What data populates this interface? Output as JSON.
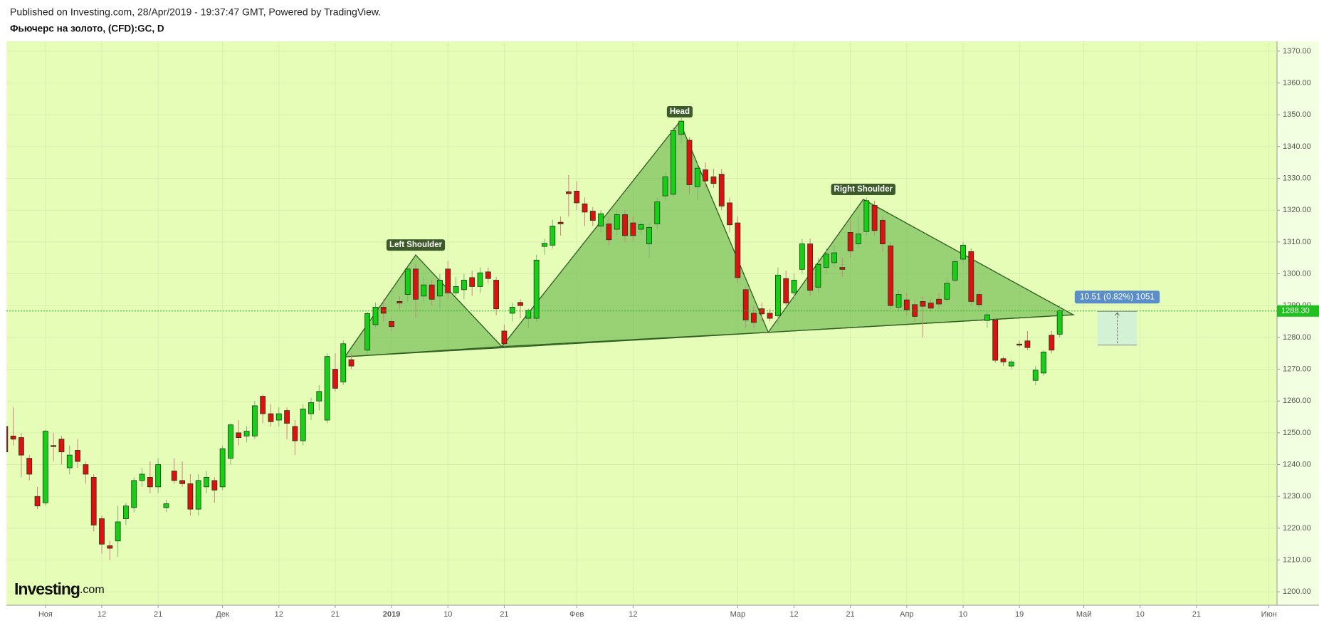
{
  "header": {
    "published": "Published on Investing.com, 28/Apr/2019 - 19:37:47 GMT, Powered by TradingView.",
    "title": "Фьючерс на золото, (CFD):GC, D"
  },
  "logo": {
    "name": "Investing",
    "suffix": ".com"
  },
  "chart_data": {
    "type": "candlestick",
    "up_color": "#16d016",
    "down_color": "#e01010",
    "grid": true,
    "xlim": [
      -4.85,
      153
    ],
    "ylim": [
      1195.8,
      1373.1
    ],
    "xticks": [
      {
        "value": 0,
        "label": "Ноя"
      },
      {
        "value": 7,
        "label": "12"
      },
      {
        "value": 14,
        "label": "21"
      },
      {
        "value": 22,
        "label": "Дек"
      },
      {
        "value": 29,
        "label": "12"
      },
      {
        "value": 36,
        "label": "21"
      },
      {
        "value": 43,
        "label": "2019"
      },
      {
        "value": 50,
        "label": "10"
      },
      {
        "value": 57,
        "label": "21"
      },
      {
        "value": 66,
        "label": "Фев"
      },
      {
        "value": 73,
        "label": "12"
      },
      {
        "value": 86,
        "label": "Мар"
      },
      {
        "value": 93,
        "label": "12"
      },
      {
        "value": 100,
        "label": "21"
      },
      {
        "value": 107,
        "label": "Апр"
      },
      {
        "value": 114,
        "label": "10"
      },
      {
        "value": 121,
        "label": "19"
      },
      {
        "value": 129,
        "label": "Май"
      },
      {
        "value": 136,
        "label": "10"
      },
      {
        "value": 143,
        "label": "21"
      },
      {
        "value": 152,
        "label": "Июн"
      }
    ],
    "yticks": [
      {
        "value": 1200,
        "label": "1200.00"
      },
      {
        "value": 1210,
        "label": "1210.00"
      },
      {
        "value": 1220,
        "label": "1220.00"
      },
      {
        "value": 1230,
        "label": "1230.00"
      },
      {
        "value": 1240,
        "label": "1240.00"
      },
      {
        "value": 1250,
        "label": "1250.00"
      },
      {
        "value": 1260,
        "label": "1260.00"
      },
      {
        "value": 1270,
        "label": "1270.00"
      },
      {
        "value": 1280,
        "label": "1280.00"
      },
      {
        "value": 1290,
        "label": "1290.00"
      },
      {
        "value": 1300,
        "label": "1300.00"
      },
      {
        "value": 1310,
        "label": "1310.00"
      },
      {
        "value": 1320,
        "label": "1320.00"
      },
      {
        "value": 1330,
        "label": "1330.00"
      },
      {
        "value": 1340,
        "label": "1340.00"
      },
      {
        "value": 1350,
        "label": "1350.00"
      },
      {
        "value": 1360,
        "label": "1360.00"
      },
      {
        "value": 1370,
        "label": "1370.00"
      }
    ],
    "last_price": {
      "value": 1288.3,
      "label": "1288.30"
    },
    "candles": [
      [
        -5,
        1252,
        1257,
        1242,
        1244
      ],
      [
        -4,
        1249,
        1258,
        1246,
        1248
      ],
      [
        -3,
        1248.5,
        1250,
        1236,
        1243
      ],
      [
        -2,
        1242,
        1243,
        1235,
        1237
      ],
      [
        -1,
        1230,
        1233,
        1226,
        1227
      ],
      [
        0,
        1228,
        1251,
        1227,
        1250.5
      ],
      [
        1,
        1246,
        1250,
        1241,
        1245.8
      ],
      [
        2,
        1248,
        1249,
        1240,
        1244
      ],
      [
        3,
        1239,
        1246,
        1237,
        1243
      ],
      [
        4,
        1244.5,
        1248,
        1239,
        1241
      ],
      [
        5,
        1240,
        1241,
        1234,
        1237
      ],
      [
        6,
        1236,
        1237,
        1219,
        1221
      ],
      [
        7,
        1223,
        1224,
        1212,
        1215
      ],
      [
        8,
        1214.5,
        1216,
        1210,
        1213.7
      ],
      [
        9,
        1216,
        1227,
        1211,
        1222
      ],
      [
        10,
        1223,
        1228,
        1221,
        1227
      ],
      [
        11,
        1226.5,
        1236,
        1225,
        1235
      ],
      [
        12,
        1235,
        1239,
        1233,
        1237
      ],
      [
        13,
        1236,
        1241,
        1231,
        1233
      ],
      [
        14,
        1233,
        1242,
        1231,
        1240
      ],
      [
        15,
        1226.5,
        1229,
        1225,
        1227.7
      ],
      [
        16,
        1238,
        1242,
        1234,
        1235
      ],
      [
        17,
        1235,
        1241,
        1233,
        1234
      ],
      [
        18,
        1234,
        1237,
        1224,
        1226
      ],
      [
        19,
        1226,
        1237,
        1224,
        1235
      ],
      [
        20,
        1233,
        1238,
        1231,
        1236
      ],
      [
        21,
        1235,
        1236,
        1228,
        1232
      ],
      [
        22,
        1233,
        1246,
        1232,
        1245
      ],
      [
        23,
        1242,
        1253,
        1240,
        1252.5
      ],
      [
        24,
        1250,
        1254,
        1246,
        1248.5
      ],
      [
        25,
        1249,
        1252,
        1247,
        1250.5
      ],
      [
        26,
        1249,
        1260,
        1248,
        1258.5
      ],
      [
        27,
        1261.5,
        1262,
        1253,
        1256
      ],
      [
        28,
        1256,
        1259,
        1252,
        1253.5
      ],
      [
        29,
        1254,
        1258,
        1252,
        1256
      ],
      [
        30,
        1257,
        1258,
        1248,
        1253
      ],
      [
        31,
        1252,
        1254,
        1243,
        1247.5
      ],
      [
        32,
        1247.5,
        1259,
        1246,
        1257.5
      ],
      [
        33,
        1256,
        1261,
        1254,
        1259.5
      ],
      [
        34,
        1260,
        1265,
        1257,
        1263
      ],
      [
        35,
        1254,
        1275,
        1253,
        1274
      ],
      [
        36,
        1270,
        1275,
        1263,
        1264
      ],
      [
        37,
        1266,
        1279,
        1265,
        1278
      ],
      [
        38,
        1273,
        1275,
        1270,
        1271
      ],
      [
        40,
        1276,
        1288,
        1275,
        1287.5
      ],
      [
        41,
        1284,
        1291,
        1283,
        1289.5
      ],
      [
        42,
        1289.5,
        1292,
        1285,
        1287.6
      ],
      [
        43,
        1285,
        1286,
        1282,
        1283.4
      ],
      [
        44,
        1291.3,
        1293,
        1289,
        1290.8
      ],
      [
        45,
        1293.5,
        1302,
        1291,
        1301.5
      ],
      [
        46,
        1301.5,
        1303,
        1286,
        1292
      ],
      [
        47,
        1293,
        1299,
        1291,
        1296.5
      ],
      [
        48,
        1296.5,
        1298,
        1290,
        1292
      ],
      [
        49,
        1293,
        1300,
        1289,
        1298
      ],
      [
        50,
        1301.5,
        1304,
        1292,
        1294
      ],
      [
        51,
        1294,
        1299,
        1293,
        1296
      ],
      [
        52,
        1295,
        1300,
        1292,
        1298
      ],
      [
        53,
        1298.8,
        1301,
        1293,
        1296
      ],
      [
        54,
        1296,
        1302,
        1294,
        1300.3
      ],
      [
        55,
        1300.6,
        1302,
        1297,
        1298.5
      ],
      [
        56,
        1298,
        1299,
        1287,
        1289
      ],
      [
        57,
        1282,
        1284,
        1277,
        1278
      ],
      [
        58,
        1287.6,
        1291,
        1285,
        1289.5
      ],
      [
        59,
        1291,
        1292,
        1286,
        1290
      ],
      [
        60,
        1286,
        1289,
        1283,
        1288.5
      ],
      [
        61,
        1286,
        1306,
        1285,
        1304.3
      ],
      [
        62,
        1308.6,
        1311,
        1306,
        1309.6
      ],
      [
        63,
        1309,
        1317,
        1308,
        1315
      ],
      [
        64,
        1316.2,
        1318,
        1312,
        1315.7
      ],
      [
        65,
        1325.8,
        1331,
        1318,
        1325.2
      ],
      [
        66,
        1326,
        1329,
        1320,
        1322.3
      ],
      [
        67,
        1322,
        1324,
        1315,
        1319.4
      ],
      [
        68,
        1319.7,
        1321,
        1315,
        1316.8
      ],
      [
        69,
        1315,
        1320,
        1313,
        1318.9
      ],
      [
        70,
        1315.7,
        1318,
        1309,
        1310.7
      ],
      [
        71,
        1314,
        1320,
        1312,
        1318.6
      ],
      [
        72,
        1318.6,
        1320,
        1310,
        1312
      ],
      [
        73,
        1316,
        1318,
        1310,
        1312
      ],
      [
        74,
        1314,
        1317,
        1312,
        1315.5
      ],
      [
        75,
        1309.4,
        1316,
        1305,
        1314.6
      ],
      [
        76,
        1315.7,
        1324,
        1314,
        1322.6
      ],
      [
        77,
        1324.5,
        1332,
        1323,
        1330.5
      ],
      [
        78,
        1325,
        1346,
        1324,
        1345
      ],
      [
        79,
        1343.8,
        1349,
        1341,
        1348
      ],
      [
        80,
        1342,
        1343,
        1325,
        1328
      ],
      [
        81,
        1327.4,
        1335,
        1323,
        1333.2
      ],
      [
        82,
        1332.7,
        1335,
        1327,
        1329.2
      ],
      [
        83,
        1330.5,
        1333,
        1327,
        1328.4
      ],
      [
        84,
        1331.3,
        1333,
        1320,
        1321.3
      ],
      [
        85,
        1322.3,
        1324,
        1313,
        1315.4
      ],
      [
        86,
        1316,
        1318,
        1297,
        1298.8
      ],
      [
        87,
        1295,
        1296,
        1283,
        1285.5
      ],
      [
        88,
        1287.6,
        1290,
        1283,
        1284.7
      ],
      [
        89,
        1289,
        1291,
        1285,
        1287.4
      ],
      [
        90,
        1287.6,
        1289,
        1285,
        1286
      ],
      [
        91,
        1286.8,
        1302,
        1284,
        1299.6
      ],
      [
        92,
        1298.5,
        1301,
        1290,
        1290.8
      ],
      [
        93,
        1294,
        1300,
        1292,
        1298
      ],
      [
        94,
        1301.4,
        1311,
        1300,
        1309.4
      ],
      [
        95,
        1309.4,
        1311,
        1293,
        1294.8
      ],
      [
        96,
        1295.8,
        1305,
        1294,
        1303
      ],
      [
        97,
        1302,
        1308,
        1300,
        1306.2
      ],
      [
        98,
        1303.5,
        1309,
        1302,
        1306.6
      ],
      [
        99,
        1302,
        1305,
        1299,
        1301.4
      ],
      [
        100,
        1313,
        1317,
        1305,
        1307.2
      ],
      [
        101,
        1309.4,
        1318,
        1308,
        1312.5
      ],
      [
        102,
        1313.3,
        1324,
        1312,
        1323
      ],
      [
        103,
        1321.5,
        1323,
        1312,
        1313.6
      ],
      [
        104,
        1316.8,
        1318,
        1307,
        1309.4
      ],
      [
        105,
        1308.8,
        1310,
        1289,
        1290
      ],
      [
        106,
        1289.5,
        1295,
        1288,
        1293.5
      ],
      [
        107,
        1291.8,
        1294,
        1287,
        1288.7
      ],
      [
        108,
        1290.3,
        1292,
        1285,
        1286.6
      ],
      [
        109,
        1291.3,
        1293,
        1280,
        1289.8
      ],
      [
        110,
        1290.8,
        1292,
        1288,
        1289.2
      ],
      [
        111,
        1292,
        1294,
        1289,
        1290.5
      ],
      [
        112,
        1292,
        1299,
        1291,
        1297
      ],
      [
        113,
        1298,
        1305,
        1297,
        1303.8
      ],
      [
        114,
        1304.6,
        1310,
        1303,
        1309
      ],
      [
        115,
        1307,
        1308,
        1290,
        1291.3
      ],
      [
        116,
        1293.5,
        1295,
        1289,
        1290.3
      ],
      [
        117,
        1285.3,
        1288,
        1283,
        1287.1
      ],
      [
        118,
        1285.5,
        1286,
        1272,
        1272.8
      ],
      [
        119,
        1273.3,
        1274,
        1271,
        1272.3
      ],
      [
        120,
        1271,
        1273,
        1270,
        1272.3
      ],
      [
        121,
        1277.9,
        1279,
        1277,
        1277.6
      ],
      [
        122,
        1278.9,
        1282,
        1276,
        1276.8
      ],
      [
        123,
        1266.5,
        1271,
        1265,
        1269.7
      ],
      [
        124,
        1268.8,
        1276,
        1268,
        1275.4
      ],
      [
        125,
        1280.7,
        1282,
        1275,
        1276
      ],
      [
        126,
        1281,
        1290,
        1280,
        1288.4
      ]
    ],
    "pattern": {
      "points": [
        [
          37.2,
          1273.9
        ],
        [
          46.0,
          1305.9
        ],
        [
          56.7,
          1277.1
        ],
        [
          78.8,
          1347.8
        ],
        [
          89.8,
          1281.6
        ],
        [
          101.6,
          1323.4
        ],
        [
          127.7,
          1287.1
        ]
      ],
      "labels": [
        "Left Shoulder",
        "Head",
        "Right Shoulder"
      ]
    },
    "measure": {
      "label": "10.51 (0.82%) 1051",
      "x": [
        130.7,
        135.6
      ],
      "y": [
        1277.6,
        1288.2
      ]
    }
  }
}
